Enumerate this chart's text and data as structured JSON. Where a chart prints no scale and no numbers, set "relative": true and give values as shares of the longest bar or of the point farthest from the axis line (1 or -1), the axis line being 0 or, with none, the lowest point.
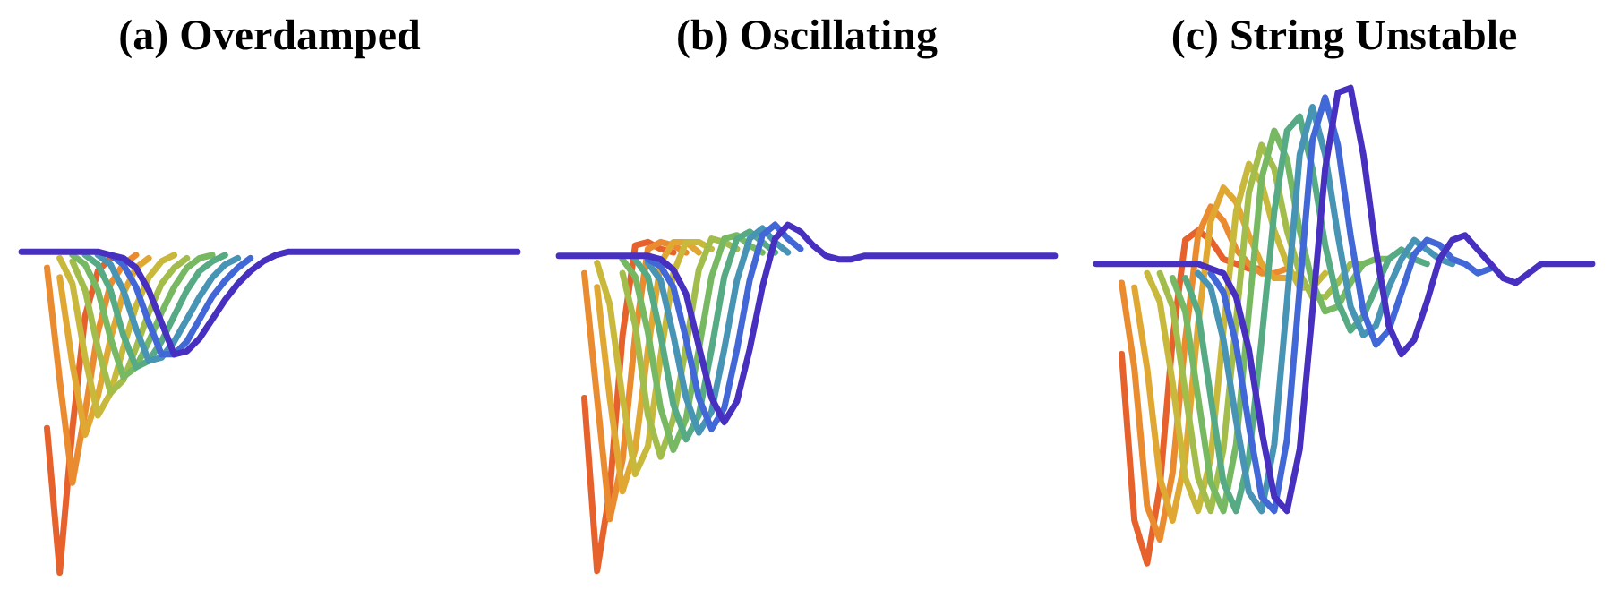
{
  "chart_data": [
    {
      "type": "line",
      "title": "(a) Overdamped",
      "relative": true,
      "categories": [
        null,
        null,
        null,
        null,
        null,
        null,
        null,
        null,
        null,
        null,
        null,
        null,
        null,
        null,
        null,
        null,
        null,
        null,
        null,
        null,
        null,
        null,
        null,
        null,
        null,
        null,
        null,
        null,
        null,
        null,
        null,
        null,
        null,
        null,
        null,
        null,
        null,
        null,
        null,
        null
      ],
      "series": [
        {
          "color": "#e6612b",
          "values": [
            null,
            null,
            0.45,
            0,
            0.45,
            0.8,
            0.94,
            0.98,
            null,
            null,
            null,
            null,
            null,
            null,
            null,
            null,
            null,
            null,
            null,
            null,
            null,
            null,
            null,
            null,
            null,
            null,
            null,
            null,
            null,
            null,
            null,
            null,
            null,
            null,
            null,
            null,
            null,
            null,
            null,
            null
          ]
        },
        {
          "color": "#eb8b30",
          "values": [
            null,
            null,
            0.95,
            0.6,
            0.28,
            0.5,
            0.75,
            0.9,
            0.96,
            0.99,
            null,
            null,
            null,
            null,
            null,
            null,
            null,
            null,
            null,
            null,
            null,
            null,
            null,
            null,
            null,
            null,
            null,
            null,
            null,
            null,
            null,
            null,
            null,
            null,
            null,
            null,
            null,
            null,
            null,
            null
          ]
        },
        {
          "color": "#e0a833",
          "values": [
            null,
            null,
            null,
            0.92,
            0.65,
            0.43,
            0.55,
            0.73,
            0.87,
            0.95,
            0.98,
            null,
            null,
            null,
            null,
            null,
            null,
            null,
            null,
            null,
            null,
            null,
            null,
            null,
            null,
            null,
            null,
            null,
            null,
            null,
            null,
            null,
            null,
            null,
            null,
            null,
            null,
            null,
            null,
            null
          ]
        },
        {
          "color": "#c8b93c",
          "values": [
            null,
            null,
            null,
            0.98,
            0.9,
            0.67,
            0.49,
            0.56,
            0.7,
            0.83,
            0.92,
            0.97,
            0.99,
            null,
            null,
            null,
            null,
            null,
            null,
            null,
            null,
            null,
            null,
            null,
            null,
            null,
            null,
            null,
            null,
            null,
            null,
            null,
            null,
            null,
            null,
            null,
            null,
            null,
            null,
            null
          ]
        },
        {
          "color": "#a3bd4d",
          "values": [
            null,
            null,
            null,
            null,
            0.97,
            0.88,
            0.7,
            0.56,
            0.6,
            0.7,
            0.81,
            0.9,
            0.95,
            0.98,
            null,
            null,
            null,
            null,
            null,
            null,
            null,
            null,
            null,
            null,
            null,
            null,
            null,
            null,
            null,
            null,
            null,
            null,
            null,
            null,
            null,
            null,
            null,
            null,
            null,
            null
          ]
        },
        {
          "color": "#77b863",
          "values": [
            null,
            null,
            null,
            null,
            0.99,
            0.96,
            0.88,
            0.73,
            0.61,
            0.64,
            0.72,
            0.81,
            0.89,
            0.95,
            0.98,
            0.99,
            null,
            null,
            null,
            null,
            null,
            null,
            null,
            null,
            null,
            null,
            null,
            null,
            null,
            null,
            null,
            null,
            null,
            null,
            null,
            null,
            null,
            null,
            null,
            null
          ]
        },
        {
          "color": "#56ab84",
          "values": [
            null,
            null,
            null,
            null,
            null,
            0.99,
            0.96,
            0.88,
            0.74,
            0.64,
            0.66,
            0.72,
            0.8,
            0.88,
            0.94,
            0.97,
            0.99,
            null,
            null,
            null,
            null,
            null,
            null,
            null,
            null,
            null,
            null,
            null,
            null,
            null,
            null,
            null,
            null,
            null,
            null,
            null,
            null,
            null,
            null,
            null
          ]
        },
        {
          "color": "#4894b4",
          "values": [
            null,
            null,
            null,
            null,
            null,
            null,
            0.99,
            0.96,
            0.88,
            0.76,
            0.66,
            0.67,
            0.72,
            0.79,
            0.86,
            0.92,
            0.96,
            0.98,
            null,
            null,
            null,
            null,
            null,
            null,
            null,
            null,
            null,
            null,
            null,
            null,
            null,
            null,
            null,
            null,
            null,
            null,
            null,
            null,
            null,
            null
          ]
        },
        {
          "color": "#4168d6",
          "values": [
            null,
            null,
            null,
            null,
            null,
            null,
            null,
            0.99,
            0.96,
            0.89,
            0.78,
            0.68,
            0.68,
            0.72,
            0.79,
            0.86,
            0.91,
            0.95,
            0.98,
            null,
            null,
            null,
            null,
            null,
            null,
            null,
            null,
            null,
            null,
            null,
            null,
            null,
            null,
            null,
            null,
            null,
            null,
            null,
            null,
            null
          ]
        },
        {
          "color": "#4730c0",
          "values": [
            1,
            1,
            1,
            1,
            1,
            1,
            1,
            0.99,
            0.98,
            0.95,
            0.88,
            0.78,
            0.68,
            0.69,
            0.73,
            0.79,
            0.85,
            0.9,
            0.94,
            0.97,
            0.99,
            1,
            1,
            1,
            1,
            1,
            1,
            1,
            1,
            1,
            1,
            1,
            1,
            1,
            1,
            1,
            1,
            1,
            1,
            1
          ]
        }
      ]
    },
    {
      "type": "line",
      "title": "(b) Oscillating",
      "relative": true,
      "categories": [
        null,
        null,
        null,
        null,
        null,
        null,
        null,
        null,
        null,
        null,
        null,
        null,
        null,
        null,
        null,
        null,
        null,
        null,
        null,
        null,
        null,
        null,
        null,
        null,
        null,
        null,
        null,
        null,
        null,
        null,
        null,
        null,
        null,
        null,
        null,
        null,
        null,
        null,
        null,
        null
      ],
      "series": [
        {
          "color": "#e6612b",
          "values": [
            null,
            null,
            0.5,
            0,
            0.23,
            0.68,
            0.94,
            0.95,
            0.93,
            0.92,
            null,
            null,
            null,
            null,
            null,
            null,
            null,
            null,
            null,
            null,
            null,
            null,
            null,
            null,
            null,
            null,
            null,
            null,
            null,
            null,
            null,
            null,
            null,
            null,
            null,
            null,
            null,
            null,
            null,
            null
          ]
        },
        {
          "color": "#eb8b30",
          "values": [
            null,
            null,
            0.86,
            0.5,
            0.15,
            0.32,
            0.68,
            0.93,
            0.95,
            0.94,
            0.92,
            null,
            null,
            null,
            null,
            null,
            null,
            null,
            null,
            null,
            null,
            null,
            null,
            null,
            null,
            null,
            null,
            null,
            null,
            null,
            null,
            null,
            null,
            null,
            null,
            null,
            null,
            null,
            null,
            null
          ]
        },
        {
          "color": "#e0a833",
          "values": [
            null,
            null,
            null,
            0.82,
            0.5,
            0.23,
            0.35,
            0.64,
            0.89,
            0.95,
            0.95,
            0.92,
            null,
            null,
            null,
            null,
            null,
            null,
            null,
            null,
            null,
            null,
            null,
            null,
            null,
            null,
            null,
            null,
            null,
            null,
            null,
            null,
            null,
            null,
            null,
            null,
            null,
            null,
            null,
            null
          ]
        },
        {
          "color": "#c8b93c",
          "values": [
            null,
            null,
            null,
            0.89,
            0.77,
            0.5,
            0.28,
            0.36,
            0.62,
            0.86,
            0.95,
            0.95,
            0.93,
            null,
            null,
            null,
            null,
            null,
            null,
            null,
            null,
            null,
            null,
            null,
            null,
            null,
            null,
            null,
            null,
            null,
            null,
            null,
            null,
            null,
            null,
            null,
            null,
            null,
            null,
            null
          ]
        },
        {
          "color": "#a3bd4d",
          "values": [
            null,
            null,
            null,
            null,
            null,
            0.86,
            0.71,
            0.45,
            0.33,
            0.44,
            0.65,
            0.87,
            0.96,
            0.95,
            0.93,
            null,
            null,
            null,
            null,
            null,
            null,
            null,
            null,
            null,
            null,
            null,
            null,
            null,
            null,
            null,
            null,
            null,
            null,
            null,
            null,
            null,
            null,
            null,
            null,
            null
          ]
        },
        {
          "color": "#77b863",
          "values": [
            null,
            null,
            null,
            null,
            null,
            0.9,
            0.85,
            0.69,
            0.47,
            0.35,
            0.44,
            0.64,
            0.85,
            0.96,
            0.97,
            0.94,
            0.92,
            null,
            null,
            null,
            null,
            null,
            null,
            null,
            null,
            null,
            null,
            null,
            null,
            null,
            null,
            null,
            null,
            null,
            null,
            null,
            null,
            null,
            null,
            null
          ]
        },
        {
          "color": "#56ab84",
          "values": [
            null,
            null,
            null,
            null,
            null,
            null,
            0.9,
            0.85,
            0.68,
            0.48,
            0.38,
            0.45,
            0.64,
            0.85,
            0.96,
            0.98,
            0.95,
            0.92,
            null,
            null,
            null,
            null,
            null,
            null,
            null,
            null,
            null,
            null,
            null,
            null,
            null,
            null,
            null,
            null,
            null,
            null,
            null,
            null,
            null,
            null
          ]
        },
        {
          "color": "#4894b4",
          "values": [
            null,
            null,
            null,
            null,
            null,
            null,
            null,
            0.89,
            0.84,
            0.68,
            0.5,
            0.4,
            0.46,
            0.64,
            0.84,
            0.96,
            0.99,
            0.95,
            0.92,
            null,
            null,
            null,
            null,
            null,
            null,
            null,
            null,
            null,
            null,
            null,
            null,
            null,
            null,
            null,
            null,
            null,
            null,
            null,
            null,
            null
          ]
        },
        {
          "color": "#4168d6",
          "values": [
            null,
            null,
            null,
            null,
            null,
            null,
            null,
            0.9,
            0.88,
            0.82,
            0.67,
            0.5,
            0.41,
            0.47,
            0.64,
            0.84,
            0.97,
            1,
            0.96,
            0.93,
            null,
            null,
            null,
            null,
            null,
            null,
            null,
            null,
            null,
            null,
            null,
            null,
            null,
            null,
            null,
            null,
            null,
            null,
            null,
            null
          ]
        },
        {
          "color": "#4730c0",
          "values": [
            0.91,
            0.91,
            0.91,
            0.91,
            0.91,
            0.91,
            0.91,
            0.91,
            0.9,
            0.87,
            0.8,
            0.65,
            0.5,
            0.43,
            0.49,
            0.64,
            0.82,
            0.96,
            1,
            0.98,
            0.94,
            0.91,
            0.9,
            0.9,
            0.91,
            0.91,
            0.91,
            0.91,
            0.91,
            0.91,
            0.91,
            0.91,
            0.91,
            0.91,
            0.91,
            0.91,
            0.91,
            0.91,
            0.91,
            0.91
          ]
        }
      ]
    },
    {
      "type": "line",
      "title": "(c) String Unstable",
      "relative": true,
      "categories": [
        null,
        null,
        null,
        null,
        null,
        null,
        null,
        null,
        null,
        null,
        null,
        null,
        null,
        null,
        null,
        null,
        null,
        null,
        null,
        null,
        null,
        null,
        null,
        null,
        null,
        null,
        null,
        null,
        null,
        null,
        null,
        null,
        null,
        null,
        null,
        null,
        null,
        null,
        null,
        null
      ],
      "series": [
        {
          "color": "#e6612b",
          "values": [
            null,
            null,
            0.44,
            0.09,
            0,
            0.16,
            0.47,
            0.68,
            0.7,
            0.68,
            0.64,
            0.63,
            0.62,
            0.62,
            null,
            null,
            null,
            null,
            null,
            null,
            null,
            null,
            null,
            null,
            null,
            null,
            null,
            null,
            null,
            null,
            null,
            null,
            null,
            null,
            null,
            null,
            null,
            null,
            null,
            null
          ]
        },
        {
          "color": "#eb8b30",
          "values": [
            null,
            null,
            0.59,
            0.41,
            0.12,
            0.05,
            0.19,
            0.47,
            0.69,
            0.75,
            0.72,
            0.66,
            0.63,
            0.61,
            0.61,
            0.62,
            null,
            null,
            null,
            null,
            null,
            null,
            null,
            null,
            null,
            null,
            null,
            null,
            null,
            null,
            null,
            null,
            null,
            null,
            null,
            null,
            null,
            null,
            null,
            null
          ]
        },
        {
          "color": "#e0a833",
          "values": [
            null,
            null,
            null,
            0.58,
            0.41,
            0.18,
            0.09,
            0.22,
            0.5,
            0.72,
            0.79,
            0.76,
            0.69,
            0.63,
            0.6,
            0.6,
            0.61,
            null,
            null,
            null,
            null,
            null,
            null,
            null,
            null,
            null,
            null,
            null,
            null,
            null,
            null,
            null,
            null,
            null,
            null,
            null,
            null,
            null,
            null,
            null
          ]
        },
        {
          "color": "#c8b93c",
          "values": [
            null,
            null,
            null,
            null,
            0.61,
            0.55,
            0.38,
            0.18,
            0.11,
            0.22,
            0.49,
            0.74,
            0.84,
            0.8,
            0.7,
            0.63,
            0.58,
            0.58,
            0.61,
            null,
            null,
            null,
            null,
            null,
            null,
            null,
            null,
            null,
            null,
            null,
            null,
            null,
            null,
            null,
            null,
            null,
            null,
            null,
            null,
            null
          ]
        },
        {
          "color": "#a3bd4d",
          "values": [
            null,
            null,
            null,
            null,
            null,
            0.61,
            0.54,
            0.36,
            0.18,
            0.11,
            0.24,
            0.51,
            0.78,
            0.88,
            0.83,
            0.7,
            0.61,
            0.56,
            0.56,
            0.59,
            0.63,
            0.63,
            null,
            null,
            null,
            null,
            null,
            null,
            null,
            null,
            null,
            null,
            null,
            null,
            null,
            null,
            null,
            null,
            null,
            null
          ]
        },
        {
          "color": "#77b863",
          "values": [
            null,
            null,
            null,
            null,
            null,
            null,
            0.6,
            0.53,
            0.35,
            0.17,
            0.11,
            0.25,
            0.53,
            0.81,
            0.91,
            0.85,
            0.7,
            0.59,
            0.53,
            0.54,
            0.59,
            0.63,
            0.64,
            0.64,
            null,
            null,
            null,
            null,
            null,
            null,
            null,
            null,
            null,
            null,
            null,
            null,
            null,
            null,
            null,
            null
          ]
        },
        {
          "color": "#56ab84",
          "values": [
            null,
            null,
            null,
            null,
            null,
            null,
            null,
            0.6,
            0.53,
            0.35,
            0.17,
            0.11,
            0.22,
            0.47,
            0.74,
            0.91,
            0.94,
            0.83,
            0.67,
            0.55,
            0.49,
            0.52,
            0.58,
            0.64,
            0.66,
            0.64,
            0.63,
            null,
            null,
            null,
            null,
            null,
            null,
            null,
            null,
            null,
            null,
            null,
            null,
            null
          ]
        },
        {
          "color": "#4894b4",
          "values": [
            null,
            null,
            null,
            null,
            null,
            null,
            null,
            null,
            0.61,
            0.58,
            0.47,
            0.3,
            0.15,
            0.11,
            0.25,
            0.55,
            0.86,
            0.96,
            0.86,
            0.69,
            0.54,
            0.48,
            0.5,
            0.58,
            0.64,
            0.68,
            0.66,
            0.64,
            0.63,
            null,
            null,
            null,
            null,
            null,
            null,
            null,
            null,
            null,
            null,
            null
          ]
        },
        {
          "color": "#4168d6",
          "values": [
            null,
            null,
            null,
            null,
            null,
            null,
            null,
            null,
            null,
            0.61,
            0.57,
            0.46,
            0.29,
            0.14,
            0.11,
            0.26,
            0.58,
            0.89,
            0.98,
            0.88,
            0.69,
            0.53,
            0.46,
            0.49,
            0.57,
            0.65,
            0.68,
            0.67,
            0.64,
            0.63,
            0.61,
            0.62,
            null,
            null,
            null,
            null,
            null,
            null,
            null,
            null
          ]
        },
        {
          "color": "#4730c0",
          "values": [
            0.63,
            0.63,
            0.63,
            0.63,
            0.63,
            0.63,
            0.63,
            0.63,
            0.63,
            0.62,
            0.61,
            0.56,
            0.45,
            0.28,
            0.14,
            0.11,
            0.24,
            0.53,
            0.83,
            0.99,
            1,
            0.86,
            0.66,
            0.5,
            0.44,
            0.47,
            0.55,
            0.64,
            0.68,
            0.69,
            0.66,
            0.63,
            0.6,
            0.59,
            0.61,
            0.63,
            0.63,
            0.63,
            0.63,
            0.63
          ]
        }
      ]
    }
  ]
}
